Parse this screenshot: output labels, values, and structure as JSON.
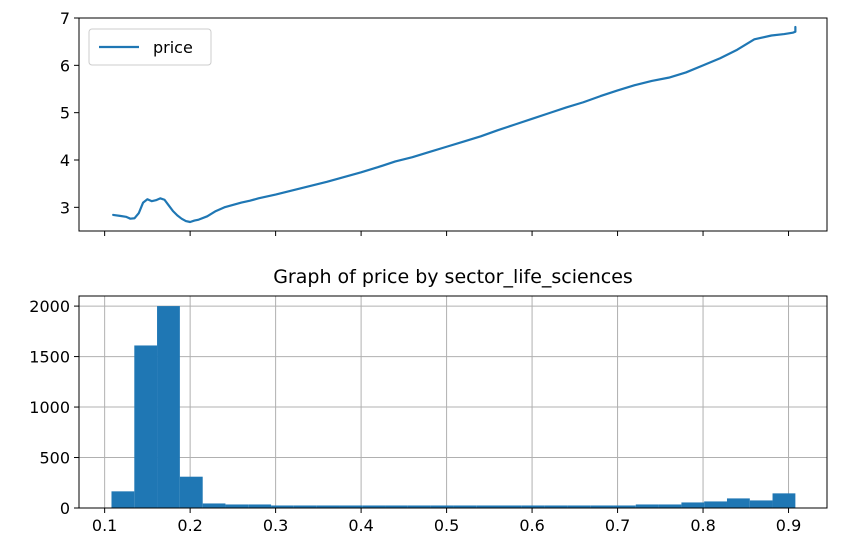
{
  "chart_data": [
    {
      "type": "line",
      "title": "",
      "xlabel": "",
      "ylabel": "",
      "xlim": [
        0.07,
        0.945
      ],
      "ylim": [
        2.5,
        7.0
      ],
      "x_ticks": [
        0.1,
        0.2,
        0.3,
        0.4,
        0.5,
        0.6,
        0.7,
        0.8,
        0.9
      ],
      "x_tick_labels_visible": false,
      "y_ticks": [
        3,
        4,
        5,
        6,
        7
      ],
      "y_tick_labels": [
        "3",
        "4",
        "5",
        "6",
        "7"
      ],
      "grid": false,
      "legend_position": "upper-left",
      "series": [
        {
          "name": "price",
          "color": "#1f77b4",
          "x": [
            0.11,
            0.118,
            0.125,
            0.13,
            0.135,
            0.14,
            0.145,
            0.15,
            0.155,
            0.16,
            0.165,
            0.17,
            0.175,
            0.18,
            0.185,
            0.19,
            0.195,
            0.2,
            0.205,
            0.21,
            0.22,
            0.23,
            0.24,
            0.25,
            0.26,
            0.27,
            0.28,
            0.3,
            0.32,
            0.34,
            0.36,
            0.38,
            0.4,
            0.42,
            0.44,
            0.46,
            0.48,
            0.5,
            0.52,
            0.54,
            0.56,
            0.58,
            0.6,
            0.62,
            0.64,
            0.66,
            0.68,
            0.7,
            0.72,
            0.74,
            0.76,
            0.78,
            0.8,
            0.82,
            0.84,
            0.86,
            0.88,
            0.895,
            0.905,
            0.908,
            0.908
          ],
          "values": [
            2.84,
            2.82,
            2.8,
            2.76,
            2.77,
            2.88,
            3.1,
            3.17,
            3.13,
            3.15,
            3.19,
            3.16,
            3.04,
            2.92,
            2.83,
            2.76,
            2.71,
            2.69,
            2.72,
            2.74,
            2.81,
            2.92,
            3.0,
            3.05,
            3.1,
            3.14,
            3.19,
            3.27,
            3.36,
            3.45,
            3.54,
            3.64,
            3.74,
            3.85,
            3.97,
            4.06,
            4.17,
            4.28,
            4.39,
            4.5,
            4.63,
            4.75,
            4.87,
            4.99,
            5.11,
            5.22,
            5.35,
            5.47,
            5.58,
            5.67,
            5.74,
            5.85,
            6.0,
            6.15,
            6.33,
            6.55,
            6.63,
            6.66,
            6.69,
            6.71,
            6.81
          ]
        }
      ]
    },
    {
      "type": "bar",
      "title": "Graph of price by sector_life_sciences",
      "xlabel": "",
      "ylabel": "",
      "xlim": [
        0.07,
        0.945
      ],
      "ylim": [
        0,
        2100
      ],
      "x_ticks": [
        0.1,
        0.2,
        0.3,
        0.4,
        0.5,
        0.6,
        0.7,
        0.8,
        0.9
      ],
      "x_tick_labels": [
        "0.1",
        "0.2",
        "0.3",
        "0.4",
        "0.5",
        "0.6",
        "0.7",
        "0.8",
        "0.9"
      ],
      "y_ticks": [
        0,
        500,
        1000,
        1500,
        2000
      ],
      "y_tick_labels": [
        "0",
        "500",
        "1000",
        "1500",
        "2000"
      ],
      "grid": true,
      "bar_color": "#1f77b4",
      "bin_edges": [
        0.108,
        0.1347,
        0.1613,
        0.188,
        0.2147,
        0.2413,
        0.268,
        0.2947,
        0.3213,
        0.348,
        0.3747,
        0.4013,
        0.428,
        0.4547,
        0.4813,
        0.508,
        0.5347,
        0.5613,
        0.588,
        0.6147,
        0.6413,
        0.668,
        0.6947,
        0.7213,
        0.748,
        0.7747,
        0.8013,
        0.828,
        0.8547,
        0.8813,
        0.908
      ],
      "values": [
        165,
        1610,
        2000,
        310,
        45,
        35,
        35,
        25,
        25,
        25,
        25,
        25,
        25,
        25,
        25,
        25,
        25,
        25,
        25,
        25,
        25,
        25,
        25,
        35,
        35,
        55,
        65,
        95,
        75,
        145
      ]
    }
  ]
}
